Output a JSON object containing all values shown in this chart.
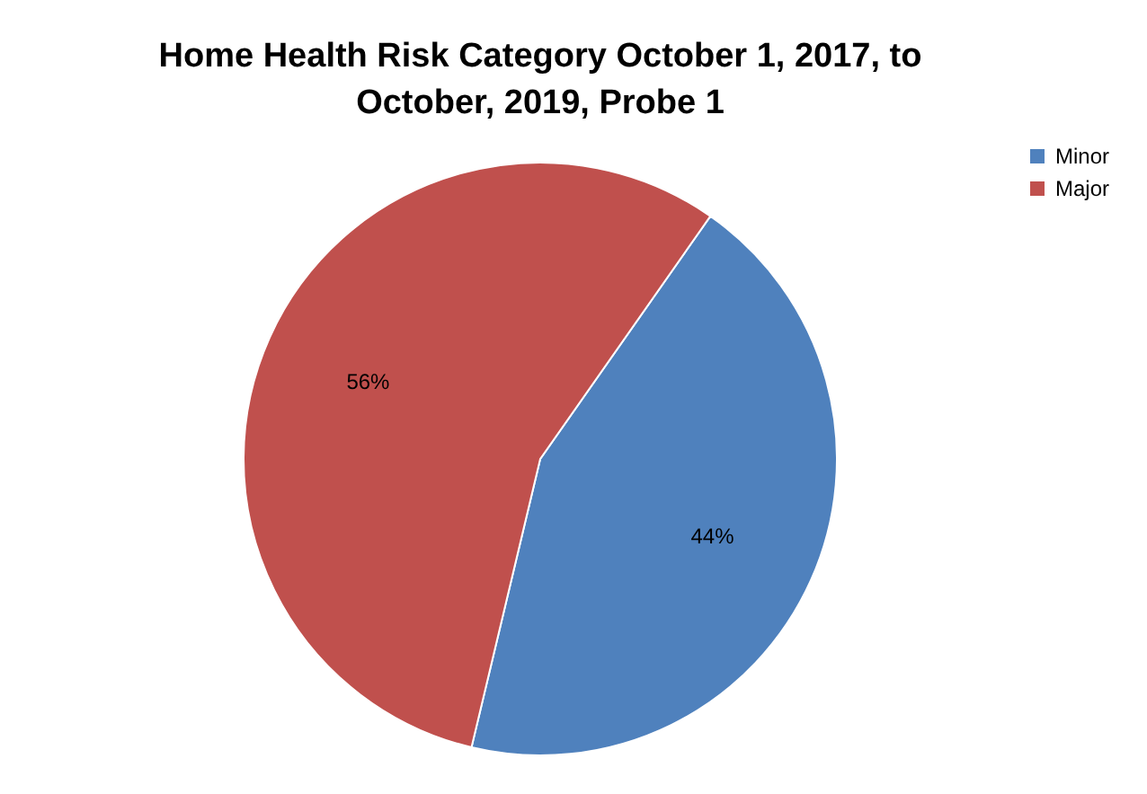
{
  "chart_data": {
    "type": "pie",
    "title": "Home Health Risk Category October 1, 2017, to October, 2019, Probe 1",
    "categories": [
      "Minor",
      "Major"
    ],
    "values": [
      44,
      56
    ],
    "colors": [
      "#4f81bd",
      "#c0504d"
    ],
    "value_labels": [
      "44%",
      "56%"
    ],
    "legend": "right"
  }
}
